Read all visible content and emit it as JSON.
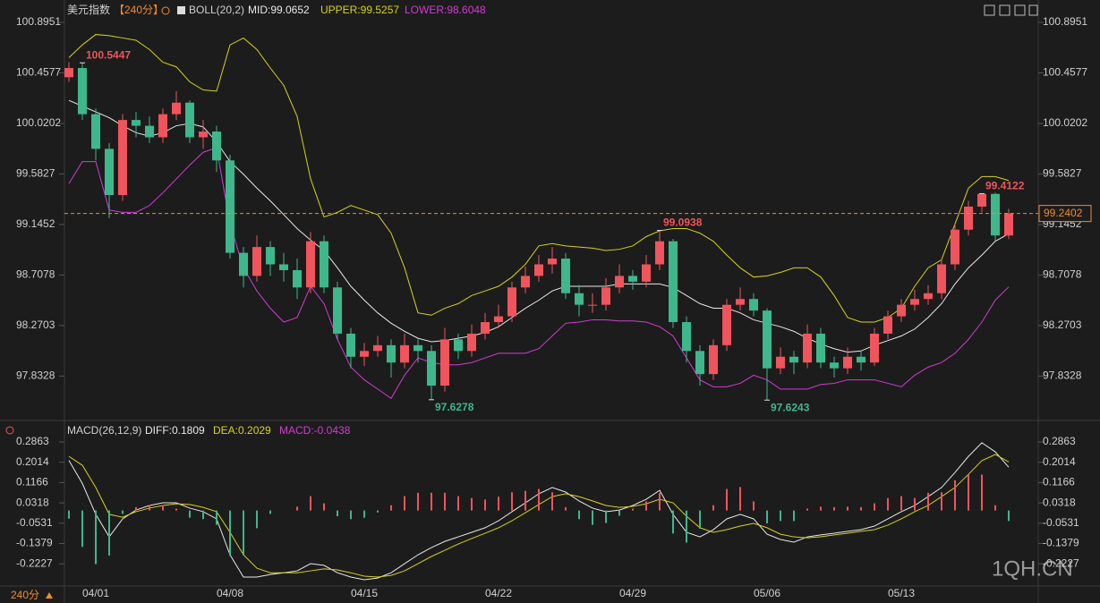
{
  "chart_data": [
    {
      "type": "candlestick",
      "title": "美元指数",
      "period": "【240分】",
      "indicator": "BOLL(20,2)",
      "categories": [
        null,
        null,
        "04/01",
        null,
        null,
        null,
        null,
        null,
        null,
        null,
        null,
        null,
        "04/08",
        null,
        null,
        null,
        null,
        null,
        null,
        null,
        null,
        null,
        "04/15",
        null,
        null,
        null,
        null,
        null,
        null,
        null,
        null,
        null,
        "04/22",
        null,
        null,
        null,
        null,
        null,
        null,
        null,
        null,
        null,
        "04/29",
        null,
        null,
        null,
        null,
        null,
        null,
        null,
        null,
        null,
        "05/06",
        null,
        null,
        null,
        null,
        null,
        null,
        null,
        null,
        null,
        "05/13",
        null,
        null,
        null,
        null,
        null,
        null,
        null,
        null
      ],
      "candles": [
        [
          100.42,
          100.55,
          100.38,
          100.5
        ],
        [
          100.5,
          100.5447,
          100.05,
          100.1
        ],
        [
          100.1,
          100.15,
          99.7,
          99.8
        ],
        [
          99.8,
          99.85,
          99.2,
          99.4
        ],
        [
          99.4,
          100.1,
          99.35,
          100.05
        ],
        [
          100.05,
          100.12,
          99.9,
          100
        ],
        [
          100,
          100.08,
          99.85,
          99.9
        ],
        [
          99.9,
          100.15,
          99.85,
          100.1
        ],
        [
          100.1,
          100.3,
          100.05,
          100.2
        ],
        [
          100.2,
          100.22,
          99.85,
          99.9
        ],
        [
          99.9,
          100.05,
          99.8,
          99.95
        ],
        [
          99.95,
          100,
          99.6,
          99.7
        ],
        [
          99.7,
          99.75,
          98.85,
          98.9
        ],
        [
          98.9,
          98.95,
          98.6,
          98.7
        ],
        [
          98.7,
          99.05,
          98.65,
          98.95
        ],
        [
          98.95,
          99,
          98.7,
          98.8
        ],
        [
          98.8,
          98.9,
          98.65,
          98.75
        ],
        [
          98.75,
          98.85,
          98.5,
          98.6
        ],
        [
          98.6,
          99.08,
          98.55,
          99
        ],
        [
          99,
          99.05,
          98.55,
          98.6
        ],
        [
          98.6,
          98.65,
          98.15,
          98.2
        ],
        [
          98.2,
          98.25,
          97.9,
          98
        ],
        [
          98,
          98.12,
          97.92,
          98.05
        ],
        [
          98.05,
          98.18,
          98,
          98.1
        ],
        [
          98.1,
          98.15,
          97.82,
          97.95
        ],
        [
          97.95,
          98.2,
          97.9,
          98.1
        ],
        [
          98.1,
          98.15,
          97.95,
          98.05
        ],
        [
          98.05,
          98.1,
          97.6278,
          97.75
        ],
        [
          97.75,
          98.25,
          97.7,
          98.15
        ],
        [
          98.15,
          98.2,
          97.98,
          98.05
        ],
        [
          98.05,
          98.28,
          98,
          98.2
        ],
        [
          98.2,
          98.38,
          98.15,
          98.3
        ],
        [
          98.3,
          98.45,
          98.25,
          98.35
        ],
        [
          98.35,
          98.65,
          98.3,
          98.6
        ],
        [
          98.6,
          98.78,
          98.55,
          98.7
        ],
        [
          98.7,
          98.88,
          98.65,
          98.8
        ],
        [
          98.8,
          98.95,
          98.72,
          98.85
        ],
        [
          98.85,
          98.9,
          98.5,
          98.55
        ],
        [
          98.55,
          98.62,
          98.35,
          98.45
        ],
        [
          98.45,
          98.55,
          98.38,
          98.45
        ],
        [
          98.45,
          98.68,
          98.4,
          98.6
        ],
        [
          98.6,
          98.8,
          98.55,
          98.7
        ],
        [
          98.7,
          98.75,
          98.58,
          98.65
        ],
        [
          98.65,
          98.88,
          98.6,
          98.8
        ],
        [
          98.8,
          99.0938,
          98.75,
          99
        ],
        [
          99,
          99.02,
          98.25,
          98.3
        ],
        [
          98.3,
          98.35,
          97.95,
          98.05
        ],
        [
          98.05,
          98.1,
          97.75,
          97.85
        ],
        [
          97.85,
          98.15,
          97.8,
          98.1
        ],
        [
          98.1,
          98.5,
          98.05,
          98.45
        ],
        [
          98.45,
          98.6,
          98.4,
          98.5
        ],
        [
          98.5,
          98.55,
          98.35,
          98.4
        ],
        [
          98.4,
          98.42,
          97.6243,
          97.9
        ],
        [
          97.9,
          98.08,
          97.85,
          98
        ],
        [
          98,
          98.05,
          97.85,
          97.95
        ],
        [
          97.95,
          98.28,
          97.9,
          98.2
        ],
        [
          98.2,
          98.25,
          97.9,
          97.95
        ],
        [
          97.95,
          98,
          97.82,
          97.9
        ],
        [
          97.9,
          98.08,
          97.85,
          98
        ],
        [
          98,
          98.05,
          97.88,
          97.95
        ],
        [
          97.95,
          98.25,
          97.92,
          98.2
        ],
        [
          98.2,
          98.4,
          98.15,
          98.35
        ],
        [
          98.35,
          98.5,
          98.3,
          98.45
        ],
        [
          98.45,
          98.58,
          98.4,
          98.5
        ],
        [
          98.5,
          98.62,
          98.45,
          98.55
        ],
        [
          98.55,
          98.85,
          98.5,
          98.8
        ],
        [
          98.8,
          99.15,
          98.75,
          99.1
        ],
        [
          99.1,
          99.35,
          99.05,
          99.3
        ],
        [
          99.3,
          99.4122,
          99.25,
          99.41
        ],
        [
          99.41,
          99.42,
          99,
          99.05
        ],
        [
          99.05,
          99.28,
          99.02,
          99.2402
        ]
      ],
      "up_color": "#f0545c",
      "down_color": "#3fb78c",
      "series": [
        {
          "name": "MID:99.0652",
          "color": "#e8e8e8",
          "values": [
            100.22,
            100.17,
            100.12,
            100.07,
            100,
            99.94,
            99.91,
            99.94,
            100,
            100.02,
            99.99,
            99.86,
            99.69,
            99.58,
            99.46,
            99.35,
            99.23,
            99.11,
            99.01,
            98.92,
            98.77,
            98.61,
            98.49,
            98.38,
            98.29,
            98.22,
            98.16,
            98.13,
            98.14,
            98.16,
            98.18,
            98.21,
            98.26,
            98.34,
            98.42,
            98.49,
            98.57,
            98.61,
            98.61,
            98.61,
            98.61,
            98.63,
            98.63,
            98.63,
            98.63,
            98.6,
            98.53,
            98.46,
            98.42,
            98.42,
            98.38,
            98.32,
            98.29,
            98.26,
            98.22,
            98.16,
            98.11,
            98.07,
            98.04,
            98.05,
            98.1,
            98.14,
            98.18,
            98.24,
            98.34,
            98.46,
            98.63,
            98.77,
            98.88,
            99,
            99.0652
          ]
        },
        {
          "name": "UPPER:99.5257",
          "color": "#d6d21e",
          "values": [
            100.59,
            100.7,
            100.79,
            100.78,
            100.76,
            100.74,
            100.66,
            100.55,
            100.51,
            100.38,
            100.31,
            100.3,
            100.7,
            100.76,
            100.66,
            100.5,
            100.35,
            100.08,
            99.54,
            99.21,
            99.25,
            99.31,
            99.27,
            99.23,
            99.07,
            98.77,
            98.38,
            98.36,
            98.42,
            98.46,
            98.53,
            98.57,
            98.61,
            98.69,
            98.8,
            98.96,
            98.98,
            98.96,
            98.95,
            98.94,
            98.92,
            98.93,
            98.96,
            99.04,
            99.09,
            99.11,
            99.11,
            99.07,
            99,
            98.88,
            98.77,
            98.69,
            98.7,
            98.73,
            98.77,
            98.77,
            98.69,
            98.53,
            98.34,
            98.3,
            98.3,
            98.34,
            98.42,
            98.61,
            98.77,
            98.84,
            99.15,
            99.46,
            99.56,
            99.56,
            99.5257
          ]
        },
        {
          "name": "LOWER:98.6048",
          "color": "#d23cd2",
          "values": [
            99.5,
            99.69,
            99.69,
            99.27,
            99.25,
            99.25,
            99.31,
            99.42,
            99.54,
            99.66,
            99.77,
            99.81,
            99.15,
            98.77,
            98.57,
            98.42,
            98.3,
            98.34,
            98.61,
            98.46,
            98.15,
            97.91,
            97.8,
            97.72,
            97.64,
            97.84,
            97.99,
            97.95,
            97.93,
            97.93,
            97.95,
            97.99,
            98.03,
            98.03,
            98.03,
            98.07,
            98.18,
            98.29,
            98.3,
            98.32,
            98.32,
            98.31,
            98.31,
            98.3,
            98.26,
            98.18,
            97.99,
            97.8,
            97.74,
            97.74,
            97.77,
            97.84,
            97.8,
            97.72,
            97.72,
            97.72,
            97.76,
            97.77,
            97.8,
            97.8,
            97.8,
            97.77,
            97.74,
            97.84,
            97.91,
            97.95,
            98.03,
            98.15,
            98.3,
            98.49,
            98.6048
          ]
        }
      ],
      "ylim": [
        97.5643,
        101.0113
      ],
      "yticks": [
        100.8951,
        100.4577,
        100.0202,
        99.5827,
        99.1452,
        98.7078,
        98.2703,
        97.8328
      ]
    },
    {
      "type": "macd",
      "indicator": "MACD(26,12,9)",
      "up_color": "#f0545c",
      "down_color": "#3fb78c",
      "series": [
        {
          "name": "DIFF:0.1809",
          "color": "#e8e8e8",
          "values": [
            0.209,
            0.113,
            -0.016,
            -0.11,
            -0.035,
            0.002,
            0.021,
            0.032,
            0.032,
            0.01,
            -0.005,
            -0.035,
            -0.185,
            -0.278,
            -0.278,
            -0.267,
            -0.26,
            -0.252,
            -0.222,
            -0.229,
            -0.26,
            -0.278,
            -0.289,
            -0.282,
            -0.26,
            -0.222,
            -0.185,
            -0.155,
            -0.129,
            -0.11,
            -0.091,
            -0.072,
            -0.043,
            -0.005,
            0.032,
            0.07,
            0.096,
            0.077,
            0.04,
            0.01,
            -0.005,
            0.002,
            0.021,
            0.047,
            0.084,
            -0.016,
            -0.091,
            -0.11,
            -0.08,
            -0.035,
            -0.016,
            -0.035,
            -0.099,
            -0.121,
            -0.132,
            -0.11,
            -0.102,
            -0.095,
            -0.087,
            -0.08,
            -0.065,
            -0.035,
            -0.005,
            0.021,
            0.058,
            0.096,
            0.159,
            0.226,
            0.283,
            0.245,
            0.1809
          ]
        },
        {
          "name": "DEA:0.2029",
          "color": "#d6d21e",
          "values": [
            0.226,
            0.189,
            0.096,
            -0.016,
            -0.028,
            -0.005,
            0.01,
            0.021,
            0.028,
            0.025,
            0.013,
            -0.005,
            -0.091,
            -0.185,
            -0.241,
            -0.26,
            -0.26,
            -0.26,
            -0.252,
            -0.244,
            -0.248,
            -0.26,
            -0.274,
            -0.278,
            -0.271,
            -0.252,
            -0.222,
            -0.192,
            -0.166,
            -0.14,
            -0.117,
            -0.095,
            -0.072,
            -0.043,
            -0.009,
            0.025,
            0.058,
            0.07,
            0.058,
            0.04,
            0.021,
            0.013,
            0.017,
            0.028,
            0.047,
            0.032,
            -0.024,
            -0.072,
            -0.091,
            -0.08,
            -0.065,
            -0.054,
            -0.072,
            -0.099,
            -0.11,
            -0.114,
            -0.11,
            -0.102,
            -0.095,
            -0.087,
            -0.08,
            -0.061,
            -0.035,
            -0.005,
            0.021,
            0.058,
            0.096,
            0.151,
            0.208,
            0.234,
            0.2029
          ]
        },
        {
          "name": "MACD:-0.0438",
          "color": "#d23cd2",
          "kind": "histogram",
          "values": [
            -0.034,
            -0.152,
            -0.224,
            -0.188,
            -0.014,
            0.014,
            0.022,
            0.022,
            0.008,
            -0.03,
            -0.036,
            -0.06,
            -0.188,
            -0.186,
            -0.074,
            -0.014,
            0,
            0.016,
            0.06,
            0.03,
            -0.024,
            -0.036,
            -0.03,
            -0.008,
            0.022,
            0.06,
            0.074,
            0.074,
            0.074,
            0.06,
            0.052,
            0.046,
            0.058,
            0.076,
            0.082,
            0.09,
            0.076,
            0.014,
            -0.036,
            -0.06,
            -0.052,
            -0.022,
            0.008,
            0.038,
            0.074,
            -0.096,
            -0.134,
            -0.076,
            0.022,
            0.09,
            0.098,
            0.038,
            -0.054,
            -0.044,
            -0.044,
            0.008,
            0.016,
            0.014,
            0.016,
            0.014,
            0.03,
            0.052,
            0.06,
            0.052,
            0.074,
            0.076,
            0.126,
            0.15,
            0.15,
            0.022,
            -0.0438
          ]
        }
      ],
      "ylim": [
        -0.3153,
        0.3199
      ],
      "yticks": [
        0.2863,
        0.2014,
        0.1166,
        0.0318,
        -0.0531,
        -0.1379,
        -0.2227
      ]
    }
  ],
  "period_switch": "240分",
  "watermark": "1QH.CN"
}
